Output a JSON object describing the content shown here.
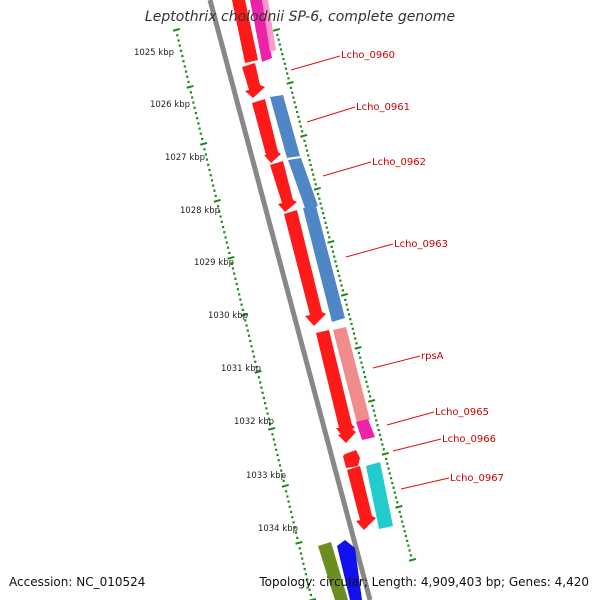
{
  "title": "Leptothrix cholodnii SP-6, complete genome",
  "footer": {
    "accession": "Accession: NC_010524",
    "summary": "Topology: circular; Length: 4,909,403 bp; Genes: 4,420"
  },
  "colors": {
    "scale_ticks": "#1a8a1a",
    "backbone": "#888888",
    "label_text": "#cc0000",
    "label_line": "#dd1111"
  },
  "scale": {
    "unit": "kbp",
    "labels": [
      "1025 kbp",
      "1026 kbp",
      "1027 kbp",
      "1028 kbp",
      "1029 kbp",
      "1030 kbp",
      "1031 kbp",
      "1032 kbp",
      "1033 kbp",
      "1034 kbp"
    ]
  },
  "genes": [
    {
      "label": "Lcho_0960",
      "color": "#ff1a1a"
    },
    {
      "label": "Lcho_0961",
      "color": "#ff1a1a"
    },
    {
      "label": "Lcho_0962",
      "color": "#ff1a1a"
    },
    {
      "label": "Lcho_0963",
      "color": "#ff1a1a"
    },
    {
      "label": "rpsA",
      "color": "#ff1a1a"
    },
    {
      "label": "Lcho_0965",
      "color": "#ff1a1a"
    },
    {
      "label": "Lcho_0966",
      "color": "#ff1a1a"
    },
    {
      "label": "Lcho_0967",
      "color": "#ff1a1a"
    }
  ],
  "features": [
    {
      "name": "cog-feature-top",
      "color": "#ee22aa"
    },
    {
      "name": "cog-feature-0961",
      "color": "#4f86c6"
    },
    {
      "name": "cog-feature-0962",
      "color": "#4f86c6"
    },
    {
      "name": "cog-feature-0963",
      "color": "#4f86c6"
    },
    {
      "name": "cog-feature-rpsA",
      "color": "#f08c8c"
    },
    {
      "name": "cog-feature-0965",
      "color": "#ee22aa"
    },
    {
      "name": "cog-feature-0967",
      "color": "#22cccc"
    },
    {
      "name": "gene-bottom-green",
      "color": "#6b8e23"
    },
    {
      "name": "gene-bottom-blue",
      "color": "#1111ee"
    }
  ]
}
